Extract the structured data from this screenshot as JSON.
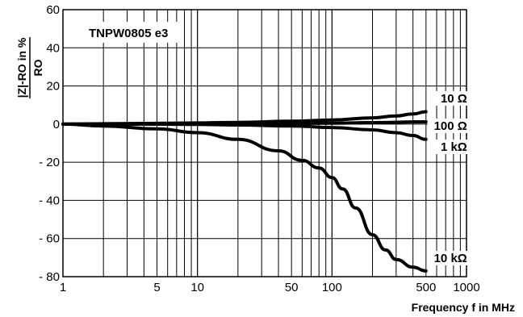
{
  "chart_data": {
    "type": "line",
    "title": "TNPW0805 e3",
    "xlabel": "Frequency f in MHz",
    "ylabel_numerator": "|Z|-RO in %",
    "ylabel_denominator": "RO",
    "xscale": "log",
    "xlim": [
      1,
      1000
    ],
    "ylim": [
      -80,
      60
    ],
    "x_ticks": [
      {
        "value": 1,
        "label": "1"
      },
      {
        "value": 5,
        "label": "5"
      },
      {
        "value": 10,
        "label": "10"
      },
      {
        "value": 50,
        "label": "50"
      },
      {
        "value": 100,
        "label": "100"
      },
      {
        "value": 500,
        "label": "500"
      },
      {
        "value": 1000,
        "label": "1000"
      }
    ],
    "y_ticks": [
      {
        "value": 60,
        "label": "60"
      },
      {
        "value": 40,
        "label": "40"
      },
      {
        "value": 20,
        "label": "20"
      },
      {
        "value": 0,
        "label": "0"
      },
      {
        "value": -20,
        "label": "- 20"
      },
      {
        "value": -40,
        "label": "- 40"
      },
      {
        "value": -60,
        "label": "- 60"
      },
      {
        "value": -80,
        "label": "- 80"
      }
    ],
    "grid": true,
    "series": [
      {
        "name": "10 Ω",
        "x": [
          1,
          2,
          5,
          10,
          20,
          50,
          100,
          200,
          300,
          400,
          500
        ],
        "y": [
          0,
          0.2,
          0.4,
          0.6,
          0.9,
          1.5,
          2.2,
          3.3,
          4.3,
          5.3,
          6.5
        ]
      },
      {
        "name": "100 Ω",
        "x": [
          1,
          5,
          10,
          50,
          100,
          200,
          500
        ],
        "y": [
          0,
          0.1,
          0.1,
          0.3,
          0.5,
          0.8,
          1.2
        ]
      },
      {
        "name": "1 kΩ",
        "x": [
          1,
          5,
          10,
          20,
          50,
          100,
          200,
          300,
          400,
          500
        ],
        "y": [
          0,
          0,
          -0.2,
          -0.5,
          -1.0,
          -1.8,
          -3.0,
          -4.5,
          -6.0,
          -8.0
        ]
      },
      {
        "name": "10 kΩ",
        "x": [
          1,
          2,
          5,
          10,
          20,
          40,
          60,
          80,
          100,
          120,
          150,
          200,
          250,
          300,
          400,
          500
        ],
        "y": [
          0,
          -1,
          -2.5,
          -4.5,
          -8,
          -14,
          -19,
          -23,
          -28,
          -34,
          -44,
          -58,
          -66,
          -71,
          -75,
          -77
        ]
      }
    ]
  }
}
